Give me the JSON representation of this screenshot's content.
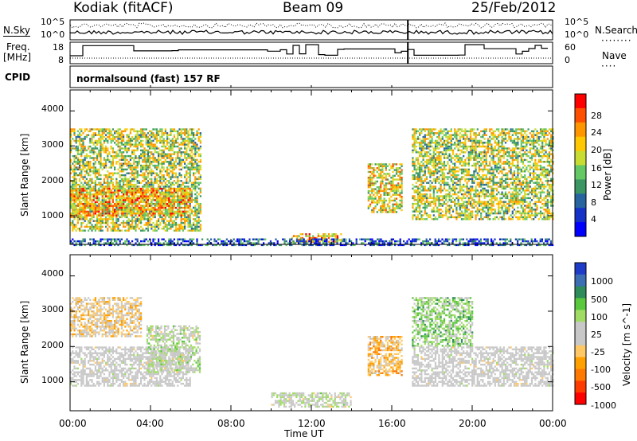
{
  "header": {
    "radar": "Kodiak (fitACF)",
    "beam": "Beam 09",
    "date": "25/Feb/2012"
  },
  "strips": {
    "nsky_label": "N.Sky",
    "nsearch_label": "N.Search",
    "freq_label_1": "Freq.",
    "freq_label_2": "[MHz]",
    "nave_label": "Nave",
    "cpid_label": "CPID",
    "cpid_value": "normalsound (fast) 157 RF",
    "noise_ticks_left": [
      "10^5",
      "10^0"
    ],
    "noise_ticks_right": [
      "10^5",
      "10^0"
    ],
    "freq_ticks": [
      "18",
      "8"
    ],
    "nave_ticks": [
      "60",
      "0"
    ]
  },
  "power_panel": {
    "ylabel": "Slant Range [km]",
    "colorbar_label": "Power [dB]",
    "colorbar_ticks": [
      "28",
      "24",
      "20",
      "16",
      "12",
      "8",
      "4"
    ],
    "colors": [
      "#ff0000",
      "#ff5000",
      "#ff9600",
      "#ffc800",
      "#c8dc32",
      "#64c864",
      "#3c9664",
      "#2864a0",
      "#1432c8",
      "#0000ff"
    ]
  },
  "velocity_panel": {
    "ylabel": "Slant Range [km]",
    "colorbar_label": "Velocity [m s^-1]",
    "colorbar_ticks": [
      "1000",
      "500",
      "100",
      "25",
      "-25",
      "-100",
      "-500",
      "-1000"
    ],
    "colors": [
      "#1e3cc8",
      "#3c6eb4",
      "#2d8c5a",
      "#5ac83c",
      "#a0dc64",
      "#c8c8c8",
      "#c8c8c8",
      "#ffc864",
      "#ffa000",
      "#ff7800",
      "#ff3c00",
      "#ff0000"
    ]
  },
  "axes": {
    "yticks": [
      "1000",
      "2000",
      "3000",
      "4000"
    ],
    "xticks": [
      "00:00",
      "04:00",
      "08:00",
      "12:00",
      "16:00",
      "20:00",
      "00:00"
    ],
    "xlabel": "Time UT"
  },
  "chart_data": [
    {
      "type": "heatmap",
      "title": "Beam 09",
      "ylabel": "Slant Range [km]",
      "xlabel": "Time UT",
      "x_range": [
        "00:00",
        "24:00"
      ],
      "ylim": [
        180,
        4600
      ],
      "value_label": "Power [dB]",
      "value_range": [
        0,
        30
      ],
      "echo_regions": [
        {
          "t_start": 0.0,
          "t_end": 6.5,
          "range_start": 600,
          "range_end": 3500,
          "typical_value": 16
        },
        {
          "t_start": 0.0,
          "t_end": 6.0,
          "range_start": 1000,
          "range_end": 1800,
          "typical_value": 22
        },
        {
          "t_start": 14.8,
          "t_end": 16.5,
          "range_start": 1100,
          "range_end": 2500,
          "typical_value": 18
        },
        {
          "t_start": 17.0,
          "t_end": 24.0,
          "range_start": 900,
          "range_end": 3500,
          "typical_value": 16
        },
        {
          "t_start": 11.0,
          "t_end": 13.5,
          "range_start": 250,
          "range_end": 500,
          "typical_value": 22
        },
        {
          "t_start": 0.0,
          "t_end": 24.0,
          "range_start": 180,
          "range_end": 350,
          "typical_value": 6
        }
      ]
    },
    {
      "type": "heatmap",
      "ylabel": "Slant Range [km]",
      "xlabel": "Time UT",
      "x_range": [
        "00:00",
        "24:00"
      ],
      "ylim": [
        180,
        4600
      ],
      "value_label": "Velocity [m s^-1]",
      "value_range": [
        -1000,
        1000
      ],
      "echo_regions": [
        {
          "t_start": 0.0,
          "t_end": 6.0,
          "range_start": 900,
          "range_end": 2000,
          "typical_value": 0
        },
        {
          "t_start": 0.0,
          "t_end": 3.5,
          "range_start": 2300,
          "range_end": 3400,
          "typical_value": -200
        },
        {
          "t_start": 3.8,
          "t_end": 6.5,
          "range_start": 1300,
          "range_end": 2600,
          "typical_value": 100
        },
        {
          "t_start": 14.8,
          "t_end": 16.5,
          "range_start": 1200,
          "range_end": 2300,
          "typical_value": -300
        },
        {
          "t_start": 17.0,
          "t_end": 20.0,
          "range_start": 2000,
          "range_end": 3400,
          "typical_value": 300
        },
        {
          "t_start": 17.0,
          "t_end": 24.0,
          "range_start": 900,
          "range_end": 2000,
          "typical_value": 0
        },
        {
          "t_start": 10.0,
          "t_end": 14.0,
          "range_start": 300,
          "range_end": 700,
          "typical_value": 80
        }
      ]
    }
  ]
}
